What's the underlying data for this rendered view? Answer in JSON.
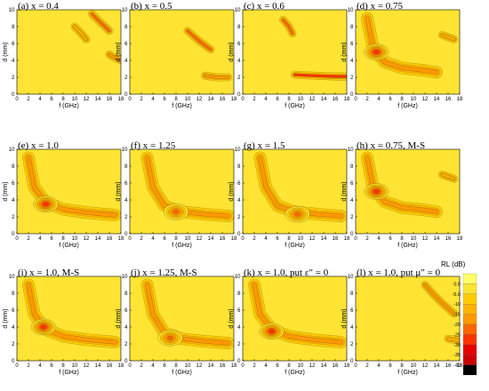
{
  "chart_data": {
    "type": "heatmap",
    "xlabel": "f (GHz)",
    "ylabel": "d (mm)",
    "xlim": [
      0,
      18
    ],
    "ylim": [
      0,
      10
    ],
    "x_ticks": [
      "0",
      "2",
      "4",
      "6",
      "8",
      "10",
      "12",
      "14",
      "16",
      "18"
    ],
    "y_ticks": [
      "0",
      "2",
      "4",
      "6",
      "8",
      "10"
    ],
    "colorbar": {
      "title": "RL (dB)",
      "levels": [
        "0.0",
        "-5.0",
        "-10",
        "-15",
        "-20",
        "-25",
        "-30",
        "-35",
        "-40"
      ],
      "colors": [
        "#FFFF66",
        "#FFE433",
        "#FFCC00",
        "#FFB300",
        "#FF9900",
        "#FF6600",
        "#FF3300",
        "#E60000",
        "#CC0000",
        "#000000"
      ]
    },
    "panels": [
      {
        "label": "(a) x = 0.4",
        "features": [
          {
            "kind": "band",
            "points": [
              [
                10,
                8
              ],
              [
                11,
                7.3
              ],
              [
                12,
                6.5
              ]
            ],
            "depth": 12
          },
          {
            "kind": "band",
            "points": [
              [
                13,
                9.5
              ],
              [
                14,
                8.8
              ],
              [
                16,
                7.5
              ]
            ],
            "depth": 20
          },
          {
            "kind": "band",
            "points": [
              [
                16,
                4.7
              ],
              [
                17,
                4.3
              ],
              [
                18,
                4
              ]
            ],
            "depth": 15
          }
        ]
      },
      {
        "label": "(b) x = 0.5",
        "features": [
          {
            "kind": "band",
            "points": [
              [
                10,
                7.5
              ],
              [
                12,
                6.3
              ],
              [
                14,
                5.3
              ]
            ],
            "depth": 20
          },
          {
            "kind": "band",
            "points": [
              [
                13,
                2.2
              ],
              [
                15,
                2
              ],
              [
                17,
                2
              ]
            ],
            "depth": 18
          }
        ]
      },
      {
        "label": "(c) x = 0.6",
        "features": [
          {
            "kind": "band",
            "points": [
              [
                7,
                8.8
              ],
              [
                8,
                8
              ],
              [
                8.6,
                7.2
              ]
            ],
            "depth": 20
          },
          {
            "kind": "band",
            "points": [
              [
                9,
                2.3
              ],
              [
                12,
                2.2
              ],
              [
                16,
                2.1
              ],
              [
                18,
                2.1
              ]
            ],
            "depth": 25
          }
        ]
      },
      {
        "label": "(d) x = 0.75",
        "features": [
          {
            "kind": "curve",
            "points": [
              [
                2,
                9
              ],
              [
                3,
                5.5
              ],
              [
                5,
                3.8
              ],
              [
                8,
                3.1
              ],
              [
                12,
                2.8
              ],
              [
                14,
                2.6
              ]
            ],
            "depth": 15
          },
          {
            "kind": "spot",
            "x": 3.6,
            "y": 5,
            "depth": 25
          },
          {
            "kind": "band",
            "points": [
              [
                15,
                7
              ],
              [
                17,
                6.5
              ]
            ],
            "depth": 12
          }
        ]
      },
      {
        "label": "(e) x = 1.0",
        "features": [
          {
            "kind": "curve",
            "points": [
              [
                2,
                9
              ],
              [
                3,
                5.5
              ],
              [
                5,
                3.7
              ],
              [
                8,
                2.9
              ],
              [
                12,
                2.5
              ],
              [
                17,
                2.2
              ]
            ],
            "depth": 15
          },
          {
            "kind": "spot",
            "x": 5,
            "y": 3.5,
            "depth": 25
          }
        ]
      },
      {
        "label": "(f) x = 1.25",
        "features": [
          {
            "kind": "curve",
            "points": [
              [
                3,
                9
              ],
              [
                4,
                5.5
              ],
              [
                6,
                3.3
              ],
              [
                9,
                2.6
              ],
              [
                13,
                2.3
              ],
              [
                17,
                2.1
              ]
            ],
            "depth": 15
          },
          {
            "kind": "spot",
            "x": 8,
            "y": 2.6,
            "depth": 22
          }
        ]
      },
      {
        "label": "(g) x = 1.5",
        "features": [
          {
            "kind": "curve",
            "points": [
              [
                3,
                9
              ],
              [
                4,
                5.5
              ],
              [
                6,
                3.3
              ],
              [
                9,
                2.6
              ],
              [
                13,
                2.3
              ],
              [
                17,
                2.1
              ]
            ],
            "depth": 15
          },
          {
            "kind": "spot",
            "x": 9.5,
            "y": 2.3,
            "depth": 20
          }
        ]
      },
      {
        "label": "(h) x = 0.75, M-S",
        "features": [
          {
            "kind": "curve",
            "points": [
              [
                2,
                9
              ],
              [
                3,
                5.5
              ],
              [
                5,
                3.8
              ],
              [
                8,
                3.1
              ],
              [
                12,
                2.8
              ],
              [
                14,
                2.6
              ]
            ],
            "depth": 15
          },
          {
            "kind": "spot",
            "x": 3.6,
            "y": 5,
            "depth": 25
          },
          {
            "kind": "band",
            "points": [
              [
                15,
                7
              ],
              [
                17,
                6.5
              ]
            ],
            "depth": 12
          }
        ]
      },
      {
        "label": "(i) x = 1.0, M-S",
        "features": [
          {
            "kind": "curve",
            "points": [
              [
                2,
                9
              ],
              [
                3,
                5.5
              ],
              [
                5,
                3.7
              ],
              [
                8,
                2.9
              ],
              [
                12,
                2.5
              ],
              [
                17,
                2.2
              ]
            ],
            "depth": 15
          },
          {
            "kind": "spot",
            "x": 4.6,
            "y": 4,
            "depth": 25
          }
        ]
      },
      {
        "label": "(j) x = 1.25, M-S",
        "features": [
          {
            "kind": "curve",
            "points": [
              [
                3,
                9
              ],
              [
                4,
                5.5
              ],
              [
                6,
                3.3
              ],
              [
                9,
                2.6
              ],
              [
                13,
                2.3
              ],
              [
                17,
                2.1
              ]
            ],
            "depth": 15
          },
          {
            "kind": "spot",
            "x": 7,
            "y": 2.7,
            "depth": 22
          }
        ]
      },
      {
        "label": "(k) x = 1.0, put ε″ = 0",
        "features": [
          {
            "kind": "curve",
            "points": [
              [
                2,
                9
              ],
              [
                3,
                5.5
              ],
              [
                5,
                3.7
              ],
              [
                8,
                2.9
              ],
              [
                12,
                2.5
              ],
              [
                17,
                2.2
              ]
            ],
            "depth": 15
          },
          {
            "kind": "spot",
            "x": 5,
            "y": 3.5,
            "depth": 25
          }
        ]
      },
      {
        "label": "(l) x = 1.0, put μ″ = 0",
        "features": [
          {
            "kind": "band",
            "points": [
              [
                12,
                9
              ],
              [
                13,
                8.2
              ],
              [
                14,
                7.5
              ],
              [
                15,
                6.8
              ],
              [
                16,
                6.2
              ],
              [
                17,
                5.6
              ]
            ],
            "depth": 15
          },
          {
            "kind": "band",
            "points": [
              [
                16,
                2.6
              ],
              [
                18,
                2.4
              ]
            ],
            "depth": 10
          }
        ]
      }
    ]
  }
}
